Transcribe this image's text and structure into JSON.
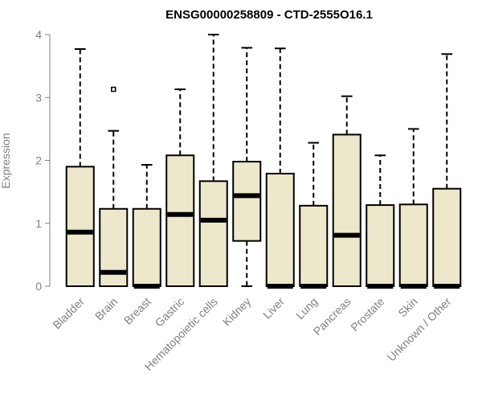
{
  "chart_data": {
    "type": "boxplot",
    "title": "ENSG00000258809 - CTD-2555O16.1",
    "xlabel": "",
    "ylabel": "Expression",
    "ylim": [
      0,
      4
    ],
    "yticks": [
      0,
      1,
      2,
      3,
      4
    ],
    "ytick_labels": [
      "0",
      "1",
      "2",
      "3",
      "4"
    ],
    "grid": false,
    "legend": "none",
    "colors": {
      "box_fill": "#ede7cc",
      "box_stroke": "#000000",
      "axis": "#808080"
    },
    "categories": [
      "Bladder",
      "Brain",
      "Breast",
      "Gastric",
      "Hematopoietic cells",
      "Kidney",
      "Liver",
      "Lung",
      "Pancreas",
      "Prostate",
      "Skin",
      "Unknown / Other"
    ],
    "boxes": [
      {
        "category": "Bladder",
        "min": 0,
        "q1": 0,
        "median": 0.86,
        "q3": 1.9,
        "max": 3.77,
        "outliers": []
      },
      {
        "category": "Brain",
        "min": 0,
        "q1": 0,
        "median": 0.22,
        "q3": 1.23,
        "max": 2.47,
        "outliers": [
          3.13
        ]
      },
      {
        "category": "Breast",
        "min": 0,
        "q1": 0,
        "median": 0,
        "q3": 1.23,
        "max": 1.93,
        "outliers": []
      },
      {
        "category": "Gastric",
        "min": 0,
        "q1": 0,
        "median": 1.14,
        "q3": 2.08,
        "max": 3.13,
        "outliers": []
      },
      {
        "category": "Hematopoietic cells",
        "min": 0,
        "q1": 0,
        "median": 1.05,
        "q3": 1.67,
        "max": 4.0,
        "outliers": []
      },
      {
        "category": "Kidney",
        "min": 0,
        "q1": 0.72,
        "median": 1.44,
        "q3": 1.98,
        "max": 3.79,
        "outliers": []
      },
      {
        "category": "Liver",
        "min": 0,
        "q1": 0,
        "median": 0,
        "q3": 1.79,
        "max": 3.78,
        "outliers": []
      },
      {
        "category": "Lung",
        "min": 0,
        "q1": 0,
        "median": 0,
        "q3": 1.28,
        "max": 2.28,
        "outliers": []
      },
      {
        "category": "Pancreas",
        "min": 0,
        "q1": 0,
        "median": 0.81,
        "q3": 2.41,
        "max": 3.02,
        "outliers": []
      },
      {
        "category": "Prostate",
        "min": 0,
        "q1": 0,
        "median": 0,
        "q3": 1.29,
        "max": 2.08,
        "outliers": []
      },
      {
        "category": "Skin",
        "min": 0,
        "q1": 0,
        "median": 0,
        "q3": 1.3,
        "max": 2.5,
        "outliers": []
      },
      {
        "category": "Unknown / Other",
        "min": 0,
        "q1": 0,
        "median": 0,
        "q3": 1.55,
        "max": 3.69,
        "outliers": []
      }
    ]
  }
}
